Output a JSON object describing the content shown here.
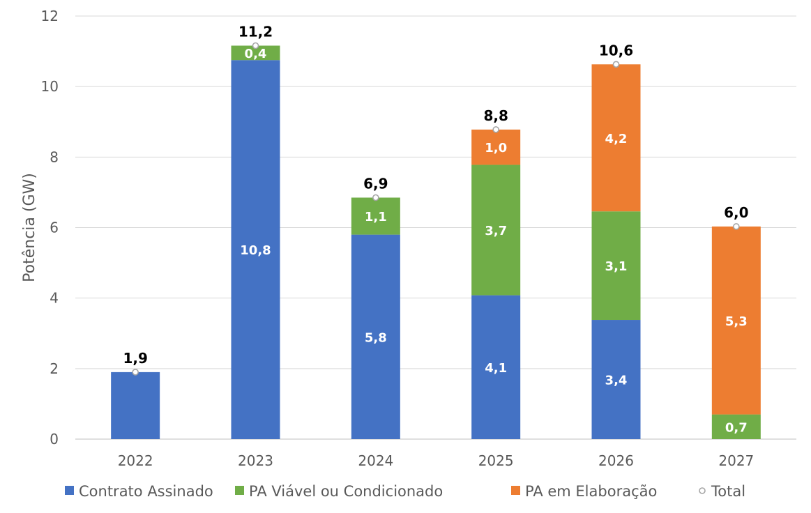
{
  "chart_data": {
    "type": "bar",
    "stacked": true,
    "categories": [
      "2022",
      "2023",
      "2024",
      "2025",
      "2026",
      "2027"
    ],
    "ylabel": "Potência (GW)",
    "xlabel": "",
    "ylim": [
      0,
      12
    ],
    "yticks": [
      "0",
      "2",
      "4",
      "6",
      "8",
      "10",
      "12"
    ],
    "grid": true,
    "legend_position": "bottom",
    "series": [
      {
        "name": "Contrato Assinado",
        "color": "#4472C4",
        "values": [
          1.9,
          10.75,
          5.8,
          4.08,
          3.38,
          0
        ],
        "labels": [
          "",
          "10,8",
          "5,8",
          "4,1",
          "3,4",
          ""
        ]
      },
      {
        "name": "PA Viável ou Condicionado",
        "color": "#70AD47",
        "values": [
          0,
          0.41,
          1.05,
          3.7,
          3.08,
          0.7
        ],
        "labels": [
          "",
          "0,4",
          "1,1",
          "3,7",
          "3,1",
          "0,7"
        ]
      },
      {
        "name": "PA em Elaboração",
        "color": "#ED7D31",
        "values": [
          0,
          0,
          0,
          1.0,
          4.17,
          5.33
        ],
        "labels": [
          "",
          "",
          "",
          "1,0",
          "4,2",
          "5,3"
        ]
      }
    ],
    "totals": {
      "name": "Total",
      "values": [
        1.9,
        11.16,
        6.85,
        8.78,
        10.63,
        6.03
      ],
      "labels": [
        "1,9",
        "11,2",
        "6,9",
        "8,8",
        "10,6",
        "6,0"
      ]
    }
  }
}
